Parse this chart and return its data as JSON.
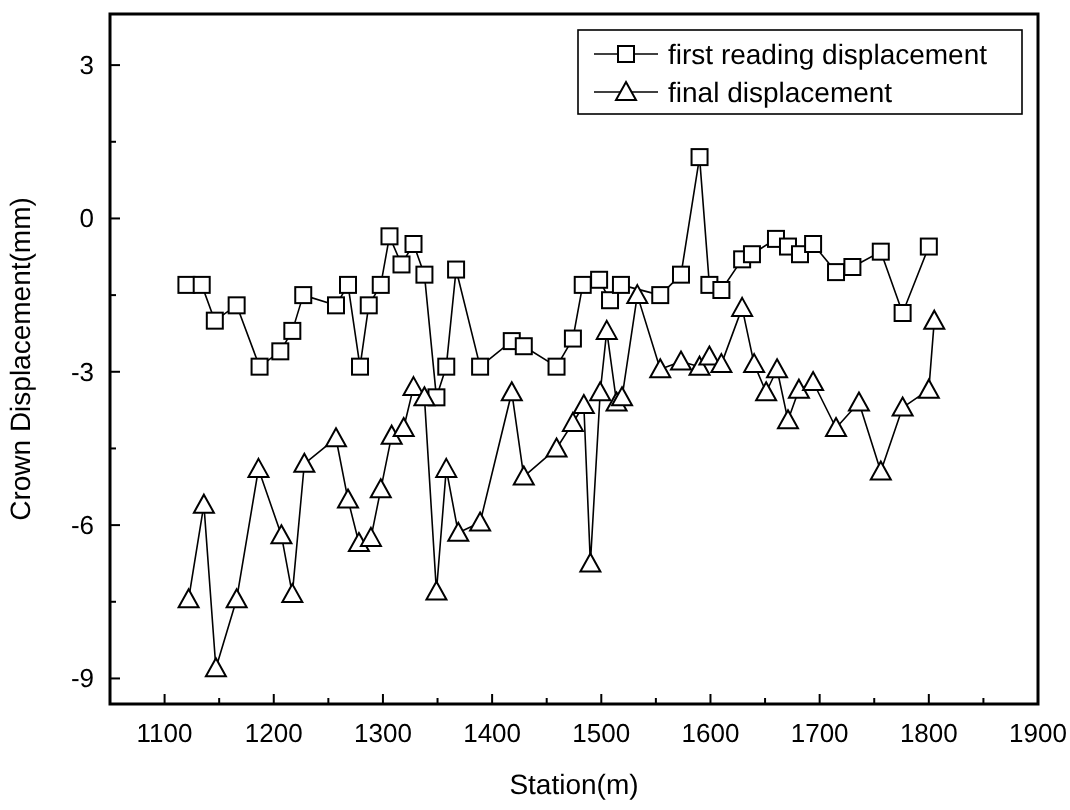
{
  "chart_data": {
    "type": "line",
    "xlabel": "Station(m)",
    "ylabel": "Crown Displacement(mm)",
    "xlim": [
      1050,
      1900
    ],
    "ylim": [
      -9.5,
      4
    ],
    "xticks": [
      1100,
      {
        "value": 1150,
        "label": null
      },
      1200,
      {
        "value": 1250,
        "label": null
      },
      1300,
      {
        "value": 1350,
        "label": null
      },
      1400,
      {
        "value": 1450,
        "label": null
      },
      1500,
      {
        "value": 1550,
        "label": null
      },
      1600,
      {
        "value": 1650,
        "label": null
      },
      1700,
      {
        "value": 1750,
        "label": null
      },
      1800,
      {
        "value": 1850,
        "label": null
      },
      1900
    ],
    "yticks": [
      -9,
      {
        "value": -7.5,
        "label": null
      },
      -6,
      {
        "value": -4.5,
        "label": null
      },
      -3,
      {
        "value": -1.5,
        "label": null
      },
      0,
      {
        "value": 1.5,
        "label": null
      },
      3
    ],
    "grid": false,
    "legend": "top right",
    "line_style": "solid",
    "series": [
      {
        "name": "first reading displacement",
        "color": "#000000",
        "marker": "square",
        "x": [
          1120,
          1134,
          1146,
          1166,
          1187,
          1206,
          1217,
          1227,
          1257,
          1268,
          1279,
          1287,
          1298,
          1306,
          1317,
          1328,
          1338,
          1349,
          1358,
          1367,
          1389,
          1418,
          1429,
          1459,
          1474,
          1483,
          1498,
          1508,
          1518,
          1554,
          1573,
          1590,
          1599,
          1610,
          1629,
          1638,
          1660,
          1671,
          1682,
          1694,
          1715,
          1730,
          1756,
          1776,
          1800
        ],
        "values": [
          -1.3,
          -1.3,
          -2.0,
          -1.7,
          -2.9,
          -2.6,
          -2.2,
          -1.5,
          -1.7,
          -1.3,
          -2.9,
          -1.7,
          -1.3,
          -0.35,
          -0.9,
          -0.5,
          -1.1,
          -3.5,
          -2.9,
          -1.0,
          -2.9,
          -2.4,
          -2.5,
          -2.9,
          -2.35,
          -1.3,
          -1.2,
          -1.6,
          -1.3,
          -1.5,
          -1.1,
          1.2,
          -1.3,
          -1.4,
          -0.8,
          -0.7,
          -0.4,
          -0.55,
          -0.7,
          -0.5,
          -1.05,
          -0.95,
          -0.65,
          -1.85,
          -0.55
        ]
      },
      {
        "name": "final displacement",
        "color": "#000000",
        "marker": "triangle",
        "x": [
          1122,
          1136,
          1147,
          1166,
          1186,
          1207,
          1217,
          1228,
          1257,
          1268,
          1278,
          1289,
          1298,
          1308,
          1319,
          1328,
          1338,
          1349,
          1358,
          1369,
          1389,
          1418,
          1429,
          1459,
          1474,
          1484,
          1490,
          1499,
          1505,
          1514,
          1519,
          1533,
          1554,
          1573,
          1590,
          1599,
          1610,
          1629,
          1640,
          1651,
          1661,
          1671,
          1681,
          1694,
          1715,
          1736,
          1756,
          1776,
          1800,
          1805
        ],
        "values": [
          -7.45,
          -5.6,
          -8.8,
          -7.45,
          -4.9,
          -6.2,
          -7.35,
          -4.8,
          -4.3,
          -5.5,
          -6.35,
          -6.25,
          -5.3,
          -4.25,
          -4.1,
          -3.3,
          -3.5,
          -7.3,
          -4.9,
          -6.15,
          -5.95,
          -3.4,
          -5.05,
          -4.5,
          -4.0,
          -3.65,
          -6.75,
          -3.4,
          -2.2,
          -3.6,
          -3.5,
          -1.5,
          -2.95,
          -2.8,
          -2.9,
          -2.7,
          -2.85,
          -1.75,
          -2.85,
          -3.4,
          -2.95,
          -3.95,
          -3.35,
          -3.2,
          -4.1,
          -3.6,
          -4.95,
          -3.7,
          -3.35,
          -2.0
        ]
      }
    ]
  }
}
